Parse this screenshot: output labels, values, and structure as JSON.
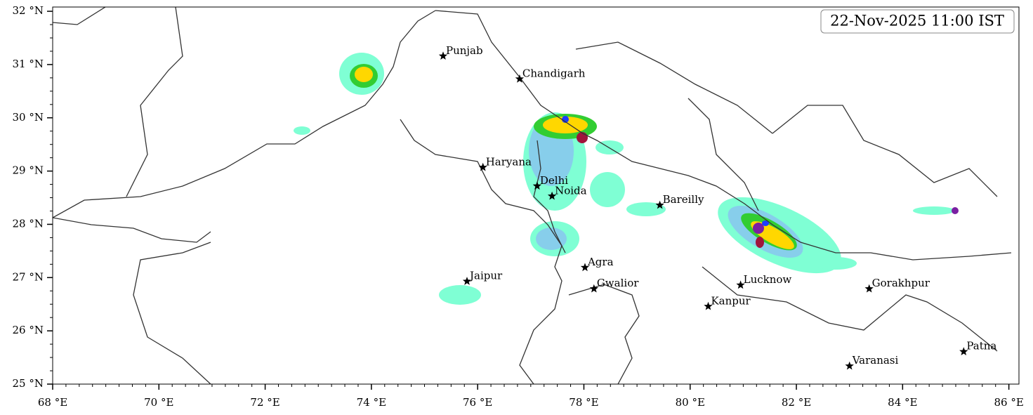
{
  "map": {
    "timestamp": "22-Nov-2025 11:00 IST",
    "xlim": [
      68,
      86.19
    ],
    "ylim": [
      25,
      32.08
    ],
    "xticks": [
      {
        "value": 68,
        "label": "68 °E"
      },
      {
        "value": 70,
        "label": "70 °E"
      },
      {
        "value": 72,
        "label": "72 °E"
      },
      {
        "value": 74,
        "label": "74 °E"
      },
      {
        "value": 76,
        "label": "76 °E"
      },
      {
        "value": 78,
        "label": "78 °E"
      },
      {
        "value": 80,
        "label": "80 °E"
      },
      {
        "value": 82,
        "label": "82 °E"
      },
      {
        "value": 84,
        "label": "84 °E"
      },
      {
        "value": 86,
        "label": "86 °E"
      }
    ],
    "yticks": [
      {
        "value": 25,
        "label": "25 °N"
      },
      {
        "value": 26,
        "label": "26 °N"
      },
      {
        "value": 27,
        "label": "27 °N"
      },
      {
        "value": 28,
        "label": "28 °N"
      },
      {
        "value": 29,
        "label": "29 °N"
      },
      {
        "value": 30,
        "label": "30 °N"
      },
      {
        "value": 31,
        "label": "31 °N"
      },
      {
        "value": 32,
        "label": "32 °N"
      }
    ],
    "cities": [
      {
        "name": "Punjab",
        "lon": 75.35,
        "lat": 31.16
      },
      {
        "name": "Chandigarh",
        "lon": 76.79,
        "lat": 30.73
      },
      {
        "name": "Haryana",
        "lon": 76.1,
        "lat": 29.07
      },
      {
        "name": "Delhi",
        "lon": 77.12,
        "lat": 28.72
      },
      {
        "name": "Noida",
        "lon": 77.4,
        "lat": 28.53
      },
      {
        "name": "Bareilly",
        "lon": 79.43,
        "lat": 28.36
      },
      {
        "name": "Agra",
        "lon": 78.02,
        "lat": 27.19
      },
      {
        "name": "Jaipur",
        "lon": 75.8,
        "lat": 26.93
      },
      {
        "name": "Gwalior",
        "lon": 78.19,
        "lat": 26.79
      },
      {
        "name": "Lucknow",
        "lon": 80.95,
        "lat": 26.86
      },
      {
        "name": "Kanpur",
        "lon": 80.34,
        "lat": 26.46
      },
      {
        "name": "Gorakhpur",
        "lon": 83.37,
        "lat": 26.79
      },
      {
        "name": "Varanasi",
        "lon": 83.0,
        "lat": 25.34
      },
      {
        "name": "Patna",
        "lon": 85.15,
        "lat": 25.61
      }
    ]
  }
}
